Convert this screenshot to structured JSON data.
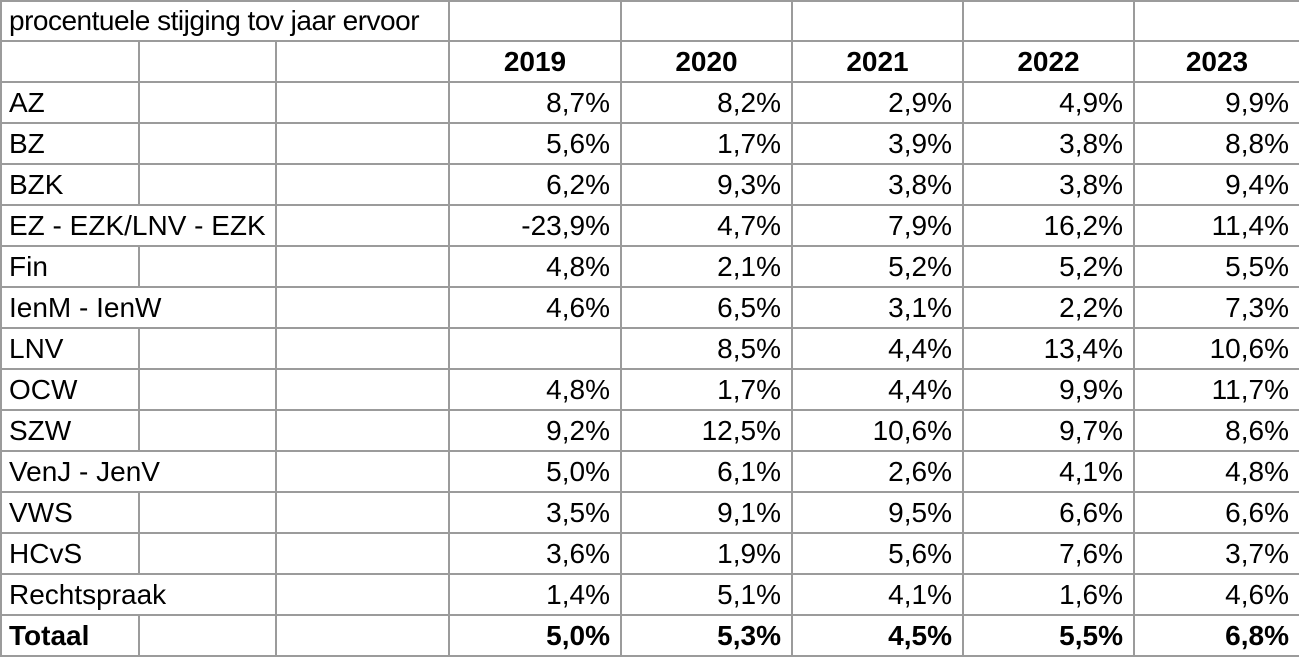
{
  "colors": {
    "grid_line": "#9b9b9b",
    "outer_border": "#7f7f7f",
    "text": "#000000",
    "background": "#ffffff"
  },
  "table": {
    "title": "procentuele stijging tov jaar ervoor",
    "year_headers": [
      "2019",
      "2020",
      "2021",
      "2022",
      "2023"
    ],
    "rows": [
      {
        "label": "AZ",
        "label_colspan": 1,
        "bold": false,
        "values": [
          "8,7%",
          "8,2%",
          "2,9%",
          "4,9%",
          "9,9%"
        ]
      },
      {
        "label": "BZ",
        "label_colspan": 1,
        "bold": false,
        "values": [
          "5,6%",
          "1,7%",
          "3,9%",
          "3,8%",
          "8,8%"
        ]
      },
      {
        "label": "BZK",
        "label_colspan": 1,
        "bold": false,
        "values": [
          "6,2%",
          "9,3%",
          "3,8%",
          "3,8%",
          "9,4%"
        ]
      },
      {
        "label": "EZ - EZK/LNV - EZK",
        "label_colspan": 2,
        "bold": false,
        "values": [
          "-23,9%",
          "4,7%",
          "7,9%",
          "16,2%",
          "11,4%"
        ]
      },
      {
        "label": "Fin",
        "label_colspan": 1,
        "bold": false,
        "values": [
          "4,8%",
          "2,1%",
          "5,2%",
          "5,2%",
          "5,5%"
        ]
      },
      {
        "label": "IenM - IenW",
        "label_colspan": 2,
        "bold": false,
        "values": [
          "4,6%",
          "6,5%",
          "3,1%",
          "2,2%",
          "7,3%"
        ]
      },
      {
        "label": "LNV",
        "label_colspan": 1,
        "bold": false,
        "values": [
          "",
          "8,5%",
          "4,4%",
          "13,4%",
          "10,6%"
        ]
      },
      {
        "label": "OCW",
        "label_colspan": 1,
        "bold": false,
        "values": [
          "4,8%",
          "1,7%",
          "4,4%",
          "9,9%",
          "11,7%"
        ]
      },
      {
        "label": "SZW",
        "label_colspan": 1,
        "bold": false,
        "values": [
          "9,2%",
          "12,5%",
          "10,6%",
          "9,7%",
          "8,6%"
        ]
      },
      {
        "label": "VenJ - JenV",
        "label_colspan": 2,
        "bold": false,
        "values": [
          "5,0%",
          "6,1%",
          "2,6%",
          "4,1%",
          "4,8%"
        ]
      },
      {
        "label": "VWS",
        "label_colspan": 1,
        "bold": false,
        "values": [
          "3,5%",
          "9,1%",
          "9,5%",
          "6,6%",
          "6,6%"
        ]
      },
      {
        "label": "HCvS",
        "label_colspan": 1,
        "bold": false,
        "values": [
          "3,6%",
          "1,9%",
          "5,6%",
          "7,6%",
          "3,7%"
        ]
      },
      {
        "label": "Rechtspraak",
        "label_colspan": 2,
        "bold": false,
        "values": [
          "1,4%",
          "5,1%",
          "4,1%",
          "1,6%",
          "4,6%"
        ]
      },
      {
        "label": "Totaal",
        "label_colspan": 1,
        "bold": true,
        "values": [
          "5,0%",
          "5,3%",
          "4,5%",
          "5,5%",
          "6,8%"
        ]
      }
    ]
  }
}
